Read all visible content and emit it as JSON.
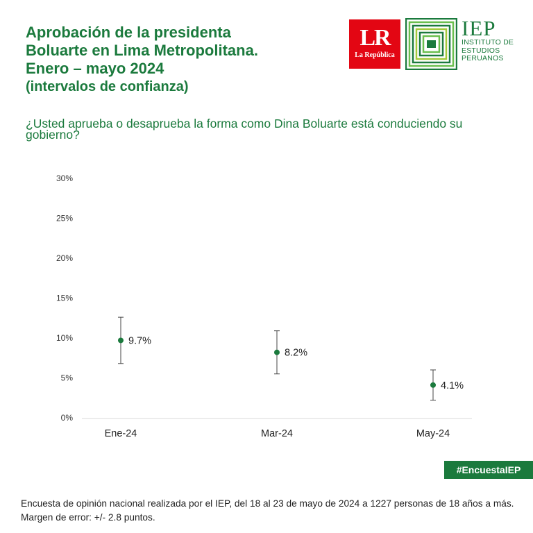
{
  "header": {
    "title_lines": [
      "Aprobación de la presidenta",
      "Boluarte en Lima Metropolitana.",
      "Enero – mayo 2024"
    ],
    "subtitle": "(intervalos de confianza)",
    "question": "¿Usted aprueba o desaprueba la forma como Dina Boluarte está conduciendo su gobierno?"
  },
  "logos": {
    "lr_mark": "LR",
    "lr_name": "La República",
    "iep_mark": "IEP",
    "iep_lines": [
      "INSTITUTO DE",
      "ESTUDIOS",
      "PERUANOS"
    ]
  },
  "colors": {
    "accent": "#1b7a3d",
    "lr_red": "#e30613",
    "errorbar": "#444444"
  },
  "chart_data": {
    "type": "scatter",
    "categories": [
      "Ene-24",
      "Mar-24",
      "May-24"
    ],
    "values": [
      9.7,
      8.2,
      4.1
    ],
    "error_low": [
      6.8,
      5.5,
      2.2
    ],
    "error_high": [
      12.6,
      10.9,
      6.0
    ],
    "data_labels": [
      "9.7%",
      "8.2%",
      "4.1%"
    ],
    "yticks": [
      "0%",
      "5%",
      "10%",
      "15%",
      "20%",
      "25%",
      "30%"
    ],
    "ylim": [
      0,
      30
    ],
    "grid": false
  },
  "hashtag": "#EncuestaIEP",
  "footnote": "Encuesta de opinión nacional realizada por el IEP, del 18 al 23 de mayo de 2024 a 1227 personas de 18 años a más. Margen de error: +/- 2.8 puntos."
}
